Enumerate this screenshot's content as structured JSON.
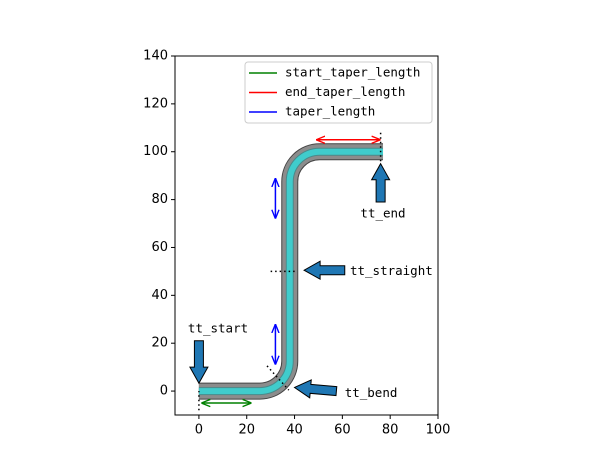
{
  "chart_data": {
    "type": "path",
    "xlim": [
      -10,
      100
    ],
    "xticks": [
      0,
      20,
      40,
      60,
      80,
      100
    ],
    "ylim": [
      -10,
      140
    ],
    "yticks": [
      0,
      20,
      40,
      60,
      80,
      100,
      120,
      140
    ],
    "path": {
      "x": [
        0,
        38,
        38,
        77
      ],
      "y": [
        0,
        0,
        100,
        100
      ],
      "bend_radius": 12.5,
      "color": "#8c8c8c",
      "core_color": "#40cccc"
    },
    "series": [
      {
        "name": "start_taper_length",
        "color": "green",
        "x": [
          1,
          22
        ],
        "y": [
          -5,
          -5
        ]
      },
      {
        "name": "end_taper_length",
        "color": "red",
        "x": [
          49,
          76
        ],
        "y": [
          105,
          105
        ]
      },
      {
        "name": "taper_length",
        "color": "blue",
        "x": [
          32,
          32,
          null,
          32,
          32
        ],
        "y": [
          72,
          89,
          null,
          11,
          28
        ]
      }
    ],
    "guides": [
      {
        "x": [
          0,
          0
        ],
        "y": [
          -8,
          0
        ]
      },
      {
        "x": [
          76,
          76
        ],
        "y": [
          96,
          108
        ]
      },
      {
        "x": [
          30,
          41
        ],
        "y": [
          50,
          50
        ]
      },
      {
        "x": [
          28.5,
          37.6
        ],
        "y": [
          10.5,
          0.4
        ]
      }
    ],
    "annotations": [
      {
        "text": "tt_start",
        "xy": [
          0,
          3.3
        ],
        "xytail": [
          0,
          21
        ],
        "xytext": [
          8,
          26
        ]
      },
      {
        "text": "tt_end",
        "xy": [
          76,
          95
        ],
        "xytail": [
          76,
          79
        ],
        "xytext": [
          77,
          74
        ]
      },
      {
        "text": "tt_straight",
        "xy": [
          44,
          50.5
        ],
        "xytail": [
          61,
          50.5
        ],
        "xytext": [
          80.5,
          50
        ]
      },
      {
        "text": "tt_bend",
        "xy": [
          40,
          1.5
        ],
        "xytail": [
          57.5,
          0
        ],
        "xytext": [
          72,
          -1
        ]
      }
    ],
    "arrow_color": "#1f77b4",
    "legend": "upper right"
  }
}
